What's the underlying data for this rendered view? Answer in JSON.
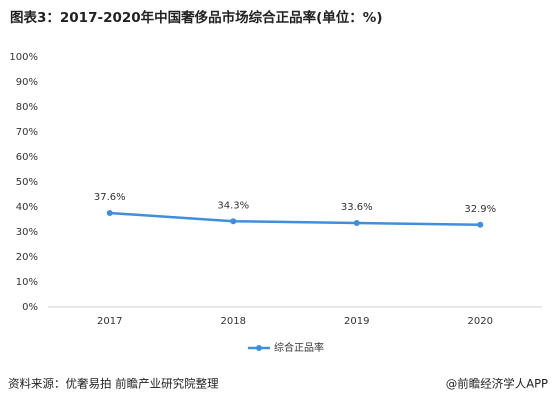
{
  "chart_data": {
    "type": "line",
    "title": "图表3：2017-2020年中国奢侈品市场综合正品率(单位：%)",
    "categories": [
      "2017",
      "2018",
      "2019",
      "2020"
    ],
    "series": [
      {
        "name": "综合正品率",
        "color": "#3f8fdc",
        "values": [
          37.6,
          34.3,
          33.6,
          32.9
        ],
        "value_labels": [
          "37.6%",
          "34.3%",
          "33.6%",
          "32.9%"
        ]
      }
    ],
    "ylim": [
      0,
      100
    ],
    "yticks": [
      {
        "value": 0,
        "label": "0%"
      },
      {
        "value": 10,
        "label": "10%"
      },
      {
        "value": 20,
        "label": "20%"
      },
      {
        "value": 30,
        "label": "30%"
      },
      {
        "value": 40,
        "label": "40%"
      },
      {
        "value": 50,
        "label": "50%"
      },
      {
        "value": 60,
        "label": "60%"
      },
      {
        "value": 70,
        "label": "70%"
      },
      {
        "value": 80,
        "label": "80%"
      },
      {
        "value": 90,
        "label": "90%"
      },
      {
        "value": 100,
        "label": "100%"
      }
    ],
    "grid": false,
    "legend": "bottom",
    "source": "资料来源：优奢易拍 前瞻产业研究院整理",
    "watermark": "@前瞻经济学人APP"
  }
}
